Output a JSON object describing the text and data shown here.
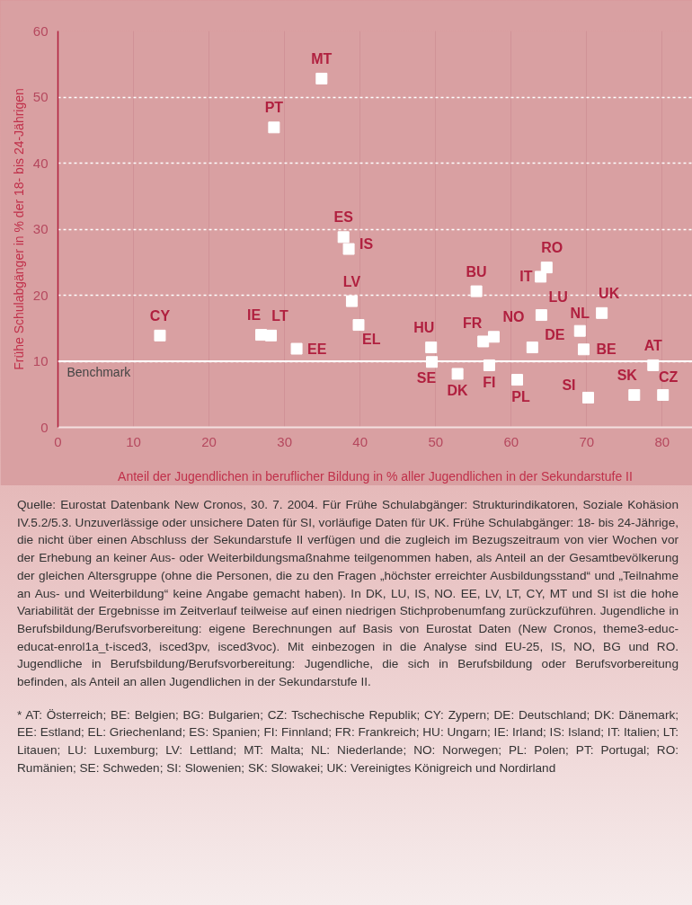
{
  "chart_data": {
    "type": "scatter",
    "xlabel": "Anteil der Jugendlichen in beruflicher Bildung in % aller Jugendlichen in der Sekundarstufe II",
    "ylabel": "Frühe Schulabgänger in % der 18- bis 24-Jährigen",
    "x": [
      13.5,
      26.9,
      28.2,
      31.6,
      28.6,
      34.9,
      37.8,
      38.5,
      38.9,
      39.8,
      49.4,
      49.5,
      52.9,
      55.4,
      56.3,
      57.7,
      57.1,
      60.8,
      62.8,
      63.9,
      64.7,
      64.0,
      69.1,
      69.6,
      72.0,
      70.2,
      78.8,
      76.3,
      80.1
    ],
    "series": [
      {
        "color": "#ffffff",
        "values": [
          13.9,
          14.0,
          13.9,
          11.9,
          45.4,
          52.8,
          28.8,
          27.0,
          19.1,
          15.5,
          12.1,
          9.9,
          8.1,
          20.6,
          13.0,
          13.7,
          9.4,
          7.2,
          12.1,
          22.8,
          24.2,
          17.0,
          14.6,
          11.8,
          17.3,
          4.5,
          9.4,
          4.9,
          4.9
        ]
      }
    ],
    "marker": "square",
    "xlim": [
      0,
      84
    ],
    "xticks": [
      0,
      10,
      20,
      30,
      40,
      50,
      60,
      70,
      80
    ],
    "ylim": [
      0,
      60
    ],
    "yticks": [
      0,
      10,
      20,
      30,
      40,
      50,
      60
    ],
    "grid": true,
    "ref_lines": [
      {
        "axis": "y",
        "value": 10,
        "label": "Benchmark",
        "color": "#ffffff",
        "line_style": "solid"
      }
    ],
    "annotations": [
      {
        "text": "CY",
        "x": 13.5,
        "y": 13.9
      },
      {
        "text": "IE",
        "x": 26.9,
        "y": 14.0
      },
      {
        "text": "LT",
        "x": 28.2,
        "y": 13.9
      },
      {
        "text": "EE",
        "x": 31.6,
        "y": 11.9
      },
      {
        "text": "PT",
        "x": 28.6,
        "y": 45.4
      },
      {
        "text": "MT",
        "x": 34.9,
        "y": 52.8
      },
      {
        "text": "ES",
        "x": 37.8,
        "y": 28.8
      },
      {
        "text": "IS",
        "x": 38.5,
        "y": 27.0
      },
      {
        "text": "LV",
        "x": 38.9,
        "y": 19.1
      },
      {
        "text": "EL",
        "x": 39.8,
        "y": 15.5
      },
      {
        "text": "HU",
        "x": 49.4,
        "y": 12.1
      },
      {
        "text": "SE",
        "x": 49.5,
        "y": 9.9
      },
      {
        "text": "DK",
        "x": 52.9,
        "y": 8.1
      },
      {
        "text": "BU",
        "x": 55.4,
        "y": 20.6
      },
      {
        "text": "FR",
        "x": 56.3,
        "y": 13.0
      },
      {
        "text": "NO",
        "x": 57.7,
        "y": 13.7
      },
      {
        "text": "FI",
        "x": 57.1,
        "y": 9.4
      },
      {
        "text": "PL",
        "x": 60.8,
        "y": 7.2
      },
      {
        "text": "DE",
        "x": 62.8,
        "y": 12.1
      },
      {
        "text": "IT",
        "x": 63.9,
        "y": 22.8
      },
      {
        "text": "RO",
        "x": 64.7,
        "y": 24.2
      },
      {
        "text": "LU",
        "x": 64.0,
        "y": 17.0
      },
      {
        "text": "NL",
        "x": 69.1,
        "y": 14.6
      },
      {
        "text": "BE",
        "x": 69.6,
        "y": 11.8
      },
      {
        "text": "UK",
        "x": 72.0,
        "y": 17.3
      },
      {
        "text": "SI",
        "x": 70.2,
        "y": 4.5
      },
      {
        "text": "AT",
        "x": 78.8,
        "y": 9.4
      },
      {
        "text": "SK",
        "x": 76.3,
        "y": 4.9
      },
      {
        "text": "CZ",
        "x": 80.1,
        "y": 4.9
      },
      "Quelle: Eurostat Datenbank New Cronos, 30. 7. 2004. Für Frühe Schulabgänger: Strukturindikatoren, Soziale Kohäsion IV.5.2/5.3. Unzuverlässige oder unsichere Daten für SI, vorläufige Daten für UK. Frühe Schulabgänger: 18- bis 24-Jährige, die nicht über einen Abschluss der Sekundarstufe II verfügen und die zugleich im Bezugszeitraum von vier Wochen vor der Erhebung an keiner Aus- oder Weiterbildungsmaßnahme teilgenommen haben, als Anteil an der Gesamtbevölkerung der gleichen Altersgruppe (ohne die Personen, die zu den Fragen „höchster erreichter Ausbildungsstand“ und „Teilnahme an Aus- und Weiterbildung“ keine Angabe gemacht haben). In DK, LU, IS, NO. EE, LV, LT, CY, MT und SI ist die hohe Variabilität der Ergebnisse im Zeitverlauf teilweise auf einen niedrigen Stichprobenumfang zurückzuführen. Jugendliche in Berufsbildung/Berufsvorbereitung: eigene Berechnungen auf Basis von Eurostat Daten (New Cronos, theme3-educ-educat-enrol1a_t-isced3, isced3pv, isced3voc). Mit einbezogen in die Analyse sind EU-25, IS, NO, BG und RO. Jugendliche in Berufsbildung/Berufsvorbereitung: Jugendliche, die sich in Berufsbildung oder Berufsvorbereitung befinden, als Anteil an allen Jugendlichen in der Sekundarstufe II.",
      "* AT: Österreich; BE: Belgien; BG: Bulgarien; CZ: Tschechische Republik; CY: Zypern; DE: Deutschland; DK: Dänemark; EE: Estland; EL: Griechenland; ES: Spanien; FI: Finnland; FR: Frankreich; HU: Ungarn; IE: Irland; IS: Island; IT: Italien; LT: Litauen; LU: Luxemburg; LV: Lettland; MT: Malta; NL: Niederlande; NO: Norwegen; PL: Polen; PT: Portugal; RO: Rumänien; SE: Schweden; SI: Slowenien; SK: Slowakei; UK: Vereinigtes Königreich und Nordirland"
    ]
  }
}
